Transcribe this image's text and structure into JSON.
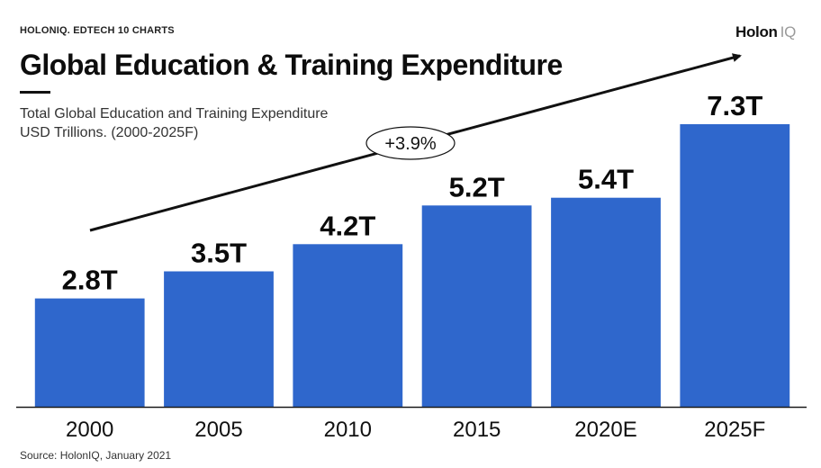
{
  "header": {
    "kicker": "HOLONIQ. EDTECH 10 CHARTS",
    "logo_main": "Holon",
    "logo_suffix": "IQ"
  },
  "title": "Global Education & Training Expenditure",
  "subtitle_line1": "Total Global Education and Training Expenditure",
  "subtitle_line2": "USD Trillions. (2000-2025F)",
  "footer": "Source: HolonIQ, January 2021",
  "growth_label": "+3.9%",
  "colors": {
    "bar": "#2f67cc",
    "text": "#0a0a0a",
    "baseline": "#1a1a1a"
  },
  "chart_data": {
    "type": "bar",
    "categories": [
      "2000",
      "2005",
      "2010",
      "2015",
      "2020E",
      "2025F"
    ],
    "values": [
      2.8,
      3.5,
      4.2,
      5.2,
      5.4,
      7.3
    ],
    "value_labels": [
      "2.8T",
      "3.5T",
      "4.2T",
      "5.2T",
      "5.4T",
      "7.3T"
    ],
    "ylim": [
      0,
      7.3
    ],
    "annotation": "+3.9%",
    "grid": false,
    "legend": "none"
  }
}
